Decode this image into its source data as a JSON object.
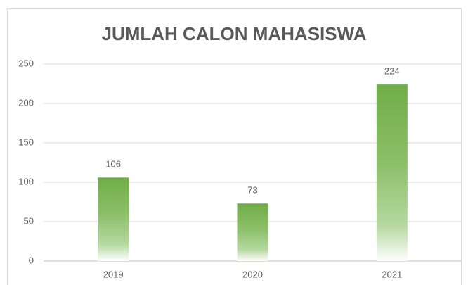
{
  "chart_data": {
    "type": "bar",
    "title": "JUMLAH CALON MAHASISWA",
    "categories": [
      "2019",
      "2020",
      "2021"
    ],
    "values": [
      106,
      73,
      224
    ],
    "color": "#70ad47",
    "ylim": [
      0,
      250
    ],
    "yticks": [
      0,
      50,
      100,
      150,
      200,
      250
    ],
    "grid": true
  }
}
